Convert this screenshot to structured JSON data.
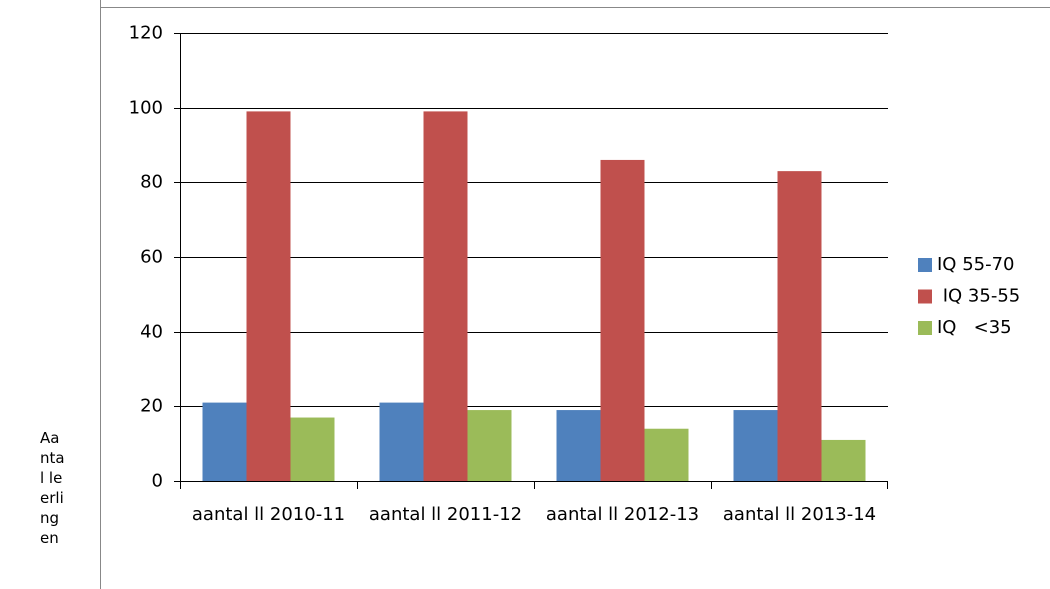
{
  "side_text": "Aantal leerlingen",
  "chart_data": {
    "type": "bar",
    "categories": [
      "aantal ll 2010-11",
      "aantal ll 2011-12",
      "aantal ll 2012-13",
      "aantal ll 2013-14"
    ],
    "series": [
      {
        "name": "IQ 55-70",
        "color": "#4f81bd",
        "values": [
          21,
          21,
          19,
          19
        ]
      },
      {
        "name": " IQ 35-55",
        "color": "#c0504d",
        "values": [
          99,
          99,
          86,
          83
        ]
      },
      {
        "name": "IQ   <35",
        "color": "#9bbb59",
        "values": [
          17,
          19,
          14,
          11
        ]
      }
    ],
    "ylim": [
      0,
      120
    ],
    "yticks": [
      0,
      20,
      40,
      60,
      80,
      100,
      120
    ],
    "grid": true,
    "legend": "right"
  }
}
